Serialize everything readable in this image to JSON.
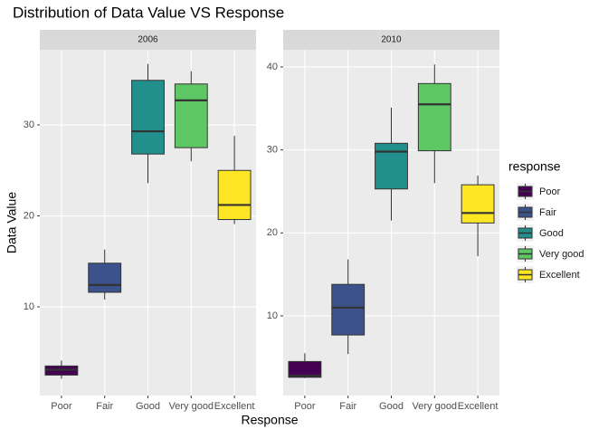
{
  "chart_data": {
    "type": "boxplot",
    "title": "Distribution of Data Value VS Response",
    "x_label": "Response",
    "y_label": "Data Value",
    "legend_title": "response",
    "categories": [
      "Poor",
      "Fair",
      "Good",
      "Very good",
      "Excellent"
    ],
    "colors": [
      "#440154",
      "#3b528b",
      "#21908c",
      "#5dc863",
      "#fde725"
    ],
    "grid": true,
    "panels": [
      {
        "title": "2006",
        "ylim": [
          0.25,
          38.26
        ],
        "yticks": [
          10,
          20,
          30
        ],
        "stats": [
          [
            2.1,
            2.5,
            3.1,
            3.5,
            4.1
          ],
          [
            10.8,
            11.6,
            12.4,
            14.8,
            16.3
          ],
          [
            23.6,
            26.8,
            29.3,
            34.9,
            36.7
          ],
          [
            26.0,
            27.5,
            32.7,
            34.5,
            35.9
          ],
          [
            19.1,
            19.6,
            21.2,
            25.0,
            28.8
          ]
        ]
      },
      {
        "title": "2010",
        "ylim": [
          0.4,
          42.07
        ],
        "yticks": [
          10,
          20,
          30,
          40
        ],
        "stats": [
          [
            2.5,
            2.6,
            2.8,
            4.5,
            5.5
          ],
          [
            5.4,
            7.7,
            11.0,
            13.8,
            16.8
          ],
          [
            21.5,
            25.3,
            29.8,
            30.8,
            35.1
          ],
          [
            26.0,
            29.9,
            35.5,
            38.0,
            40.3
          ],
          [
            17.2,
            21.2,
            22.4,
            25.8,
            26.9
          ]
        ]
      }
    ]
  }
}
